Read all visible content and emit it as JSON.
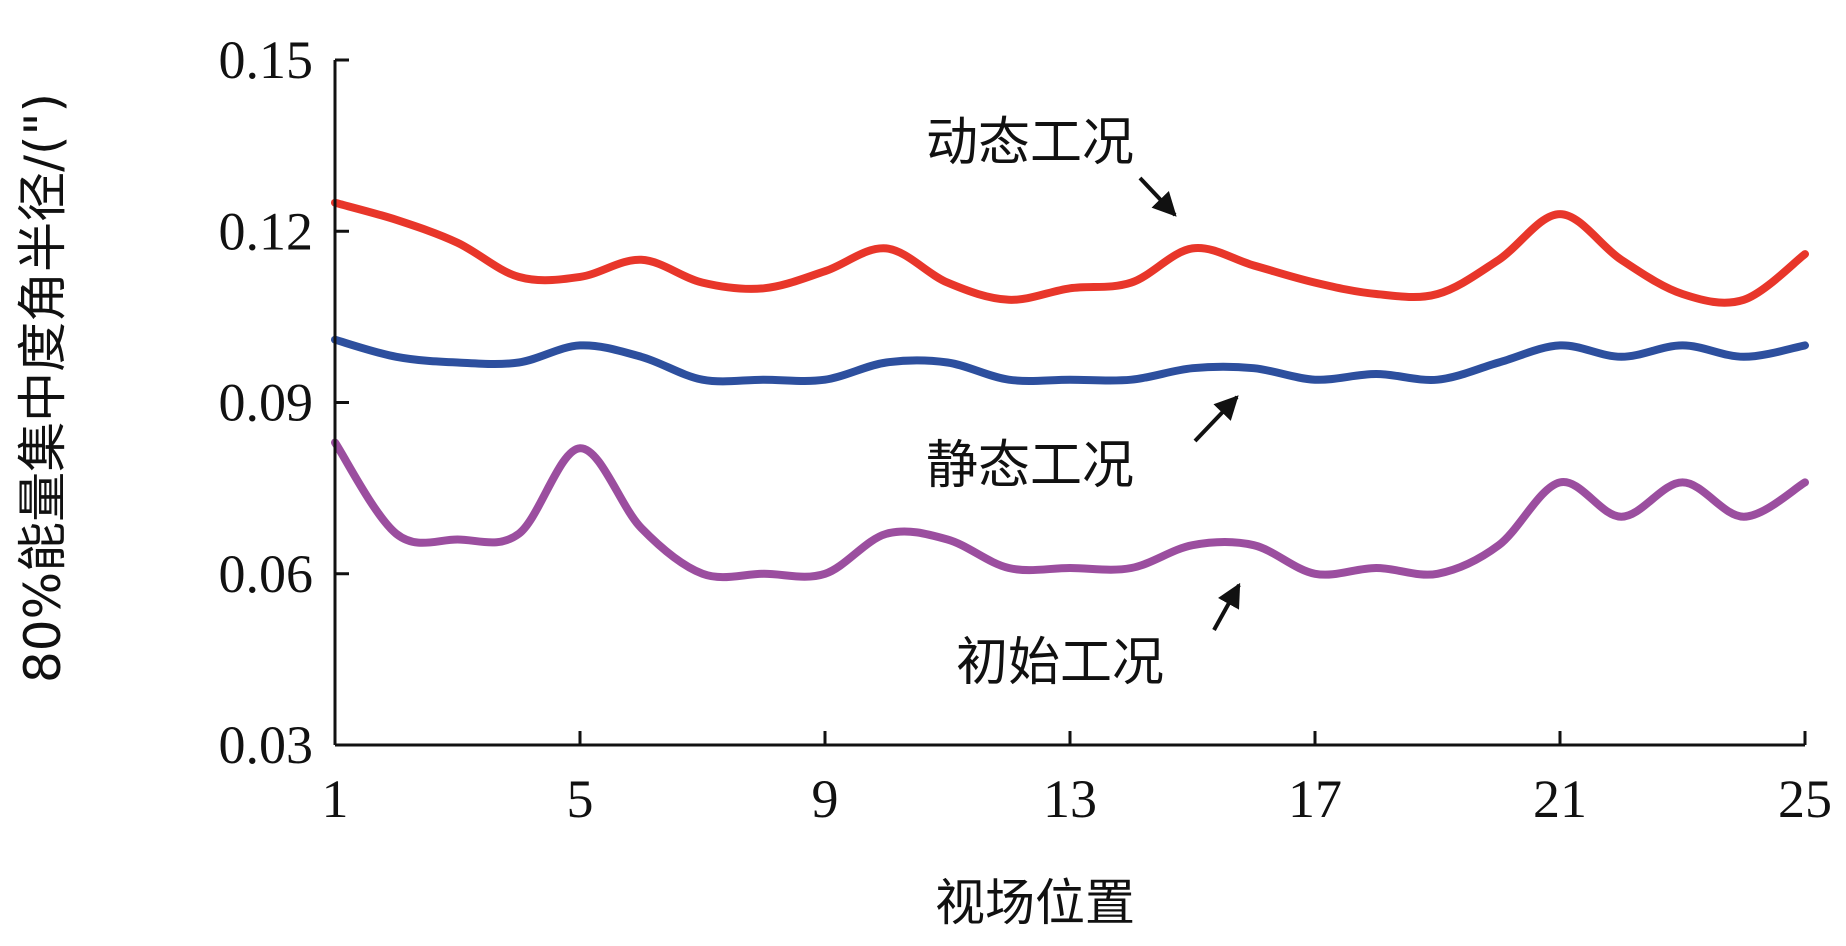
{
  "chart_data": {
    "type": "line",
    "xlabel": "视场位置",
    "ylabel": "80%能量集中度角半径/(\")",
    "xlim": [
      1,
      25
    ],
    "ylim": [
      0.03,
      0.15
    ],
    "x_ticks": [
      "1",
      "5",
      "9",
      "13",
      "17",
      "21",
      "25"
    ],
    "y_ticks": [
      "0.03",
      "0.06",
      "0.09",
      "0.12",
      "0.15"
    ],
    "grid": false,
    "legend": "none",
    "x": [
      1,
      2,
      3,
      4,
      5,
      6,
      7,
      8,
      9,
      10,
      11,
      12,
      13,
      14,
      15,
      16,
      17,
      18,
      19,
      20,
      21,
      22,
      23,
      24,
      25
    ],
    "series": [
      {
        "name": "动态工况",
        "color": "#e8362a",
        "values": [
          0.125,
          0.122,
          0.118,
          0.112,
          0.112,
          0.115,
          0.111,
          0.11,
          0.113,
          0.117,
          0.111,
          0.108,
          0.11,
          0.111,
          0.117,
          0.114,
          0.111,
          0.109,
          0.109,
          0.115,
          0.123,
          0.115,
          0.109,
          0.108,
          0.116
        ]
      },
      {
        "name": "静态工况",
        "color": "#2d4f9e",
        "values": [
          0.101,
          0.098,
          0.097,
          0.097,
          0.1,
          0.098,
          0.094,
          0.094,
          0.094,
          0.097,
          0.097,
          0.094,
          0.094,
          0.094,
          0.096,
          0.096,
          0.094,
          0.095,
          0.094,
          0.097,
          0.1,
          0.098,
          0.1,
          0.098,
          0.1
        ]
      },
      {
        "name": "初始工况",
        "color": "#9b4e9f",
        "values": [
          0.083,
          0.067,
          0.066,
          0.067,
          0.082,
          0.068,
          0.06,
          0.06,
          0.06,
          0.067,
          0.066,
          0.061,
          0.061,
          0.061,
          0.065,
          0.065,
          0.06,
          0.061,
          0.06,
          0.065,
          0.076,
          0.07,
          0.076,
          0.07,
          0.076
        ]
      }
    ],
    "annotations": [
      {
        "text": "动态工况",
        "series": "动态工况",
        "x": 15
      },
      {
        "text": "静态工况",
        "series": "静态工况",
        "x": 16
      },
      {
        "text": "初始工况",
        "series": "初始工况",
        "x": 16
      }
    ]
  }
}
